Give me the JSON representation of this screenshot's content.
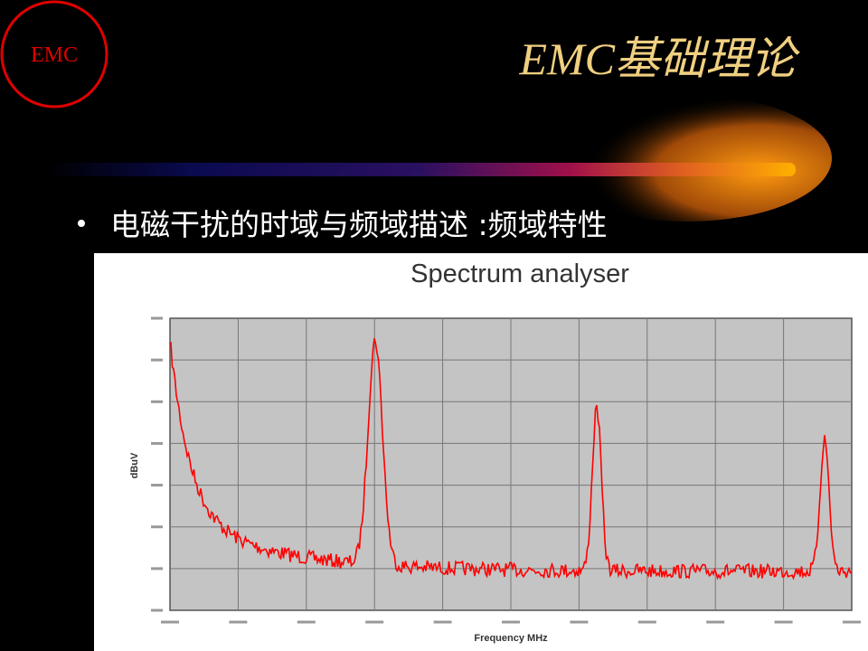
{
  "header": {
    "logo": "EMC",
    "title": "EMC基础理论"
  },
  "bullet": "电磁干扰的时域与频域描述 :频域特性",
  "figure": {
    "title": "Spectrum analyser",
    "y_label": "dBuV",
    "x_label": "Frequency MHz"
  }
}
